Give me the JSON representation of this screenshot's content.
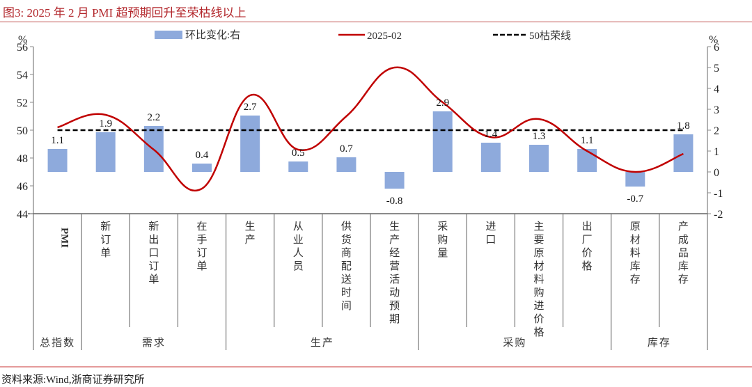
{
  "title": "图3:  2025 年 2 月 PMI 超预期回升至荣枯线以上",
  "source": "资料来源:Wind,浙商证券研究所",
  "legend": {
    "bar": "环比变化:右",
    "line": "2025-02",
    "dashed": "50枯荣线"
  },
  "axes": {
    "left_unit": "%",
    "right_unit": "%",
    "left_ticks": [
      "56",
      "54",
      "52",
      "50",
      "48",
      "46",
      "44"
    ],
    "right_ticks": [
      "6",
      "5",
      "4",
      "3",
      "2",
      "1",
      "0",
      "-1",
      "-2"
    ]
  },
  "groups": [
    {
      "label": "总指数",
      "span": 1
    },
    {
      "label": "需求",
      "span": 3
    },
    {
      "label": "生产",
      "span": 4
    },
    {
      "label": "采购",
      "span": 4
    },
    {
      "label": "库存",
      "span": 2
    }
  ],
  "colors": {
    "bar": "#8eaadc",
    "line": "#c00000",
    "dashed": "#000000",
    "title": "#b3282d"
  },
  "chart_data": {
    "type": "bar+line",
    "title": "2025 年 2 月 PMI 超预期回升至荣枯线以上",
    "categories": [
      "PMI",
      "新订单",
      "新出口订单",
      "在手订单",
      "生产",
      "从业人员",
      "供货商配送时间",
      "生产经营活动预期",
      "采购量",
      "进口",
      "主要原材料购进价格",
      "出厂价格",
      "原材料库存",
      "产成品库存"
    ],
    "series": [
      {
        "name": "环比变化:右",
        "type": "bar",
        "axis": "right",
        "values": [
          1.1,
          1.9,
          2.2,
          0.4,
          2.7,
          0.5,
          0.7,
          -0.8,
          2.9,
          1.4,
          1.3,
          1.1,
          -0.7,
          1.8
        ]
      },
      {
        "name": "2025-02",
        "type": "line",
        "axis": "left",
        "values": [
          50.2,
          51.1,
          48.6,
          45.8,
          52.5,
          48.6,
          51.0,
          54.5,
          52.0,
          49.5,
          50.8,
          48.5,
          47.0,
          48.3
        ]
      },
      {
        "name": "50枯荣线",
        "type": "line",
        "style": "dashed",
        "axis": "left",
        "values": [
          50,
          50,
          50,
          50,
          50,
          50,
          50,
          50,
          50,
          50,
          50,
          50,
          50,
          50
        ]
      }
    ],
    "ylabel_left": "%",
    "ylabel_right": "%",
    "ylim_left": [
      44,
      56
    ],
    "ylim_right": [
      -2,
      6
    ],
    "group_labels": [
      "总指数",
      "需求",
      "生产",
      "采购",
      "库存"
    ],
    "grid": false,
    "legend_position": "top"
  }
}
